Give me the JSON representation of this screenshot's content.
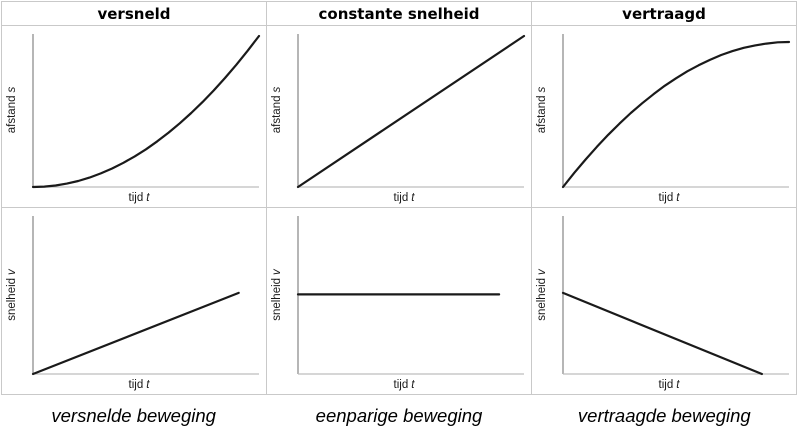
{
  "figure": {
    "columns": [
      {
        "header": "versneld",
        "caption": "versnelde beweging",
        "top_graph": {
          "ylabel": "afstand",
          "ylabel_var": "s",
          "xlabel": "tijd",
          "xlabel_var": "t"
        },
        "bottom_graph": {
          "ylabel": "snelheid",
          "ylabel_var": "v",
          "xlabel": "tijd",
          "xlabel_var": "t"
        }
      },
      {
        "header": "constante snelheid",
        "caption": "eenparige beweging",
        "top_graph": {
          "ylabel": "afstand",
          "ylabel_var": "s",
          "xlabel": "tijd",
          "xlabel_var": "t"
        },
        "bottom_graph": {
          "ylabel": "snelheid",
          "ylabel_var": "v",
          "xlabel": "tijd",
          "xlabel_var": "t"
        }
      },
      {
        "header": "vertraagd",
        "caption": "vertraagde beweging",
        "top_graph": {
          "ylabel": "afstand",
          "ylabel_var": "s",
          "xlabel": "tijd",
          "xlabel_var": "t"
        },
        "bottom_graph": {
          "ylabel": "snelheid",
          "ylabel_var": "v",
          "xlabel": "tijd",
          "xlabel_var": "t"
        }
      }
    ]
  },
  "chart_data": [
    {
      "id": "versneld-afstand-tijd",
      "type": "line",
      "title": "versneld",
      "xlabel": "tijd t",
      "ylabel": "afstand s",
      "shape": "quadratic-increasing",
      "axis_ticks": "none",
      "points": [
        [
          0,
          0
        ],
        [
          0.05,
          0.0025
        ],
        [
          0.1,
          0.01
        ],
        [
          0.15,
          0.0225
        ],
        [
          0.2,
          0.04
        ],
        [
          0.25,
          0.0625
        ],
        [
          0.3,
          0.09
        ],
        [
          0.35,
          0.1225
        ],
        [
          0.4,
          0.16
        ],
        [
          0.45,
          0.2025
        ],
        [
          0.5,
          0.25
        ],
        [
          0.55,
          0.3025
        ],
        [
          0.6,
          0.36
        ],
        [
          0.65,
          0.4225
        ],
        [
          0.7,
          0.49
        ],
        [
          0.75,
          0.5625
        ],
        [
          0.8,
          0.64
        ],
        [
          0.85,
          0.7225
        ],
        [
          0.9,
          0.81
        ],
        [
          0.95,
          0.9025
        ],
        [
          1,
          1
        ]
      ]
    },
    {
      "id": "constante-snelheid-afstand-tijd",
      "type": "line",
      "title": "constante snelheid",
      "xlabel": "tijd t",
      "ylabel": "afstand s",
      "shape": "linear-increasing",
      "axis_ticks": "none",
      "points": [
        [
          0,
          0
        ],
        [
          1,
          1
        ]
      ]
    },
    {
      "id": "vertraagd-afstand-tijd",
      "type": "line",
      "title": "vertraagd",
      "xlabel": "tijd t",
      "ylabel": "afstand s",
      "shape": "concave-saturating",
      "axis_ticks": "none",
      "points": [
        [
          0,
          0
        ],
        [
          0.05,
          0.094
        ],
        [
          0.1,
          0.182
        ],
        [
          0.15,
          0.266
        ],
        [
          0.2,
          0.346
        ],
        [
          0.25,
          0.42
        ],
        [
          0.3,
          0.49
        ],
        [
          0.35,
          0.554
        ],
        [
          0.4,
          0.614
        ],
        [
          0.45,
          0.67
        ],
        [
          0.5,
          0.72
        ],
        [
          0.55,
          0.766
        ],
        [
          0.6,
          0.806
        ],
        [
          0.65,
          0.842
        ],
        [
          0.7,
          0.874
        ],
        [
          0.75,
          0.9
        ],
        [
          0.8,
          0.922
        ],
        [
          0.85,
          0.938
        ],
        [
          0.9,
          0.95
        ],
        [
          0.95,
          0.958
        ],
        [
          1,
          0.96
        ]
      ]
    },
    {
      "id": "versneld-snelheid-tijd",
      "type": "line",
      "title": "versnelde beweging",
      "xlabel": "tijd t",
      "ylabel": "snelheid v",
      "shape": "linear-increasing",
      "axis_ticks": "none",
      "points": [
        [
          0,
          0
        ],
        [
          0.91,
          0.52
        ]
      ]
    },
    {
      "id": "eenparig-snelheid-tijd",
      "type": "line",
      "title": "eenparige beweging",
      "xlabel": "tijd t",
      "ylabel": "snelheid v",
      "shape": "constant",
      "axis_ticks": "none",
      "points": [
        [
          0,
          0.51
        ],
        [
          0.89,
          0.51
        ]
      ]
    },
    {
      "id": "vertraagd-snelheid-tijd",
      "type": "line",
      "title": "vertraagde beweging",
      "xlabel": "tijd t",
      "ylabel": "snelheid v",
      "shape": "linear-decreasing",
      "axis_ticks": "none",
      "points": [
        [
          0,
          0.52
        ],
        [
          0.88,
          0
        ]
      ]
    }
  ],
  "colors": {
    "grid_border": "#c9c9c9",
    "axis_y": "#8f8f8f",
    "axis_x": "#bdbdbd",
    "curve": "#1a1a1a",
    "text": "#000000"
  }
}
